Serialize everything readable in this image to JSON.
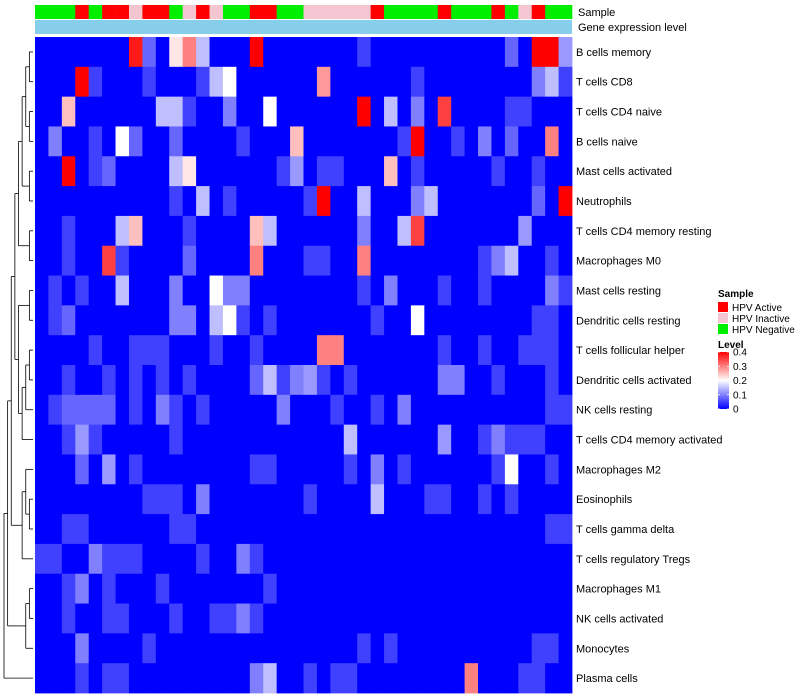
{
  "chart_data": {
    "type": "heatmap",
    "annotation_rows": [
      "Sample",
      "Gene expression level"
    ],
    "rows": [
      "B cells memory",
      "T cells CD8",
      "T cells CD4 naive",
      "B cells naive",
      "Mast cells activated",
      "Neutrophils",
      "T cells CD4 memory resting",
      "Macrophages M0",
      "Mast cells resting",
      "Dendritic cells resting",
      "T cells follicular helper",
      "Dendritic cells activated",
      "NK cells resting",
      "T cells CD4 memory activated",
      "Macrophages M2",
      "Eosinophils",
      "T cells gamma delta",
      "T cells regulatory  Tregs",
      "Macrophages M1",
      "NK cells activated",
      "Monocytes",
      "Plasma cells"
    ],
    "sample_groups": [
      "N",
      "N",
      "N",
      "A",
      "N",
      "A",
      "A",
      "I",
      "A",
      "A",
      "N",
      "I",
      "A",
      "I",
      "N",
      "N",
      "A",
      "A",
      "N",
      "N",
      "I",
      "I",
      "I",
      "I",
      "I",
      "A",
      "N",
      "N",
      "N",
      "N",
      "A",
      "N",
      "N",
      "N",
      "A",
      "N",
      "I",
      "A",
      "N",
      "N"
    ],
    "values": [
      [
        0,
        0,
        0,
        0,
        0,
        0,
        0,
        0.38,
        0.08,
        0,
        0.22,
        0.3,
        0.15,
        0,
        0,
        0,
        0.4,
        0,
        0,
        0,
        0,
        0,
        0,
        0,
        0.05,
        0,
        0,
        0,
        0,
        0,
        0,
        0,
        0,
        0,
        0,
        0.08,
        0,
        0.4,
        0.4,
        0.12
      ],
      [
        0,
        0,
        0,
        0.4,
        0.05,
        0,
        0,
        0,
        0.05,
        0,
        0,
        0,
        0.05,
        0.15,
        0.2,
        0,
        0,
        0,
        0,
        0,
        0,
        0.28,
        0,
        0,
        0,
        0,
        0,
        0,
        0.05,
        0,
        0,
        0,
        0,
        0,
        0,
        0,
        0,
        0.1,
        0.15,
        0.05
      ],
      [
        0,
        0,
        0.25,
        0,
        0,
        0,
        0,
        0,
        0,
        0.15,
        0.15,
        0.05,
        0,
        0,
        0.1,
        0,
        0,
        0.2,
        0,
        0,
        0,
        0,
        0,
        0,
        0.4,
        0,
        0.15,
        0,
        0.1,
        0,
        0.35,
        0,
        0,
        0,
        0,
        0.05,
        0.05,
        0,
        0,
        0
      ],
      [
        0,
        0.1,
        0,
        0,
        0.05,
        0,
        0.2,
        0.08,
        0,
        0,
        0.08,
        0,
        0,
        0,
        0,
        0.05,
        0,
        0,
        0,
        0.25,
        0,
        0,
        0,
        0,
        0,
        0,
        0,
        0.05,
        0.4,
        0,
        0,
        0.05,
        0,
        0.1,
        0,
        0.08,
        0,
        0,
        0.3,
        0
      ],
      [
        0,
        0,
        0.4,
        0,
        0.05,
        0.08,
        0,
        0,
        0,
        0,
        0.15,
        0.22,
        0,
        0,
        0,
        0,
        0,
        0,
        0.05,
        0.12,
        0,
        0.05,
        0.05,
        0,
        0,
        0,
        0.25,
        0,
        0.05,
        0,
        0,
        0,
        0,
        0,
        0.05,
        0,
        0,
        0.05,
        0,
        0
      ],
      [
        0,
        0,
        0,
        0,
        0,
        0,
        0,
        0,
        0,
        0,
        0.05,
        0,
        0.15,
        0,
        0.05,
        0,
        0,
        0,
        0,
        0,
        0.05,
        0.4,
        0,
        0,
        0.15,
        0,
        0,
        0,
        0.1,
        0.15,
        0,
        0,
        0,
        0,
        0,
        0,
        0,
        0.08,
        0,
        0.4
      ],
      [
        0,
        0,
        0.05,
        0,
        0,
        0,
        0.15,
        0.25,
        0,
        0,
        0,
        0.05,
        0,
        0,
        0,
        0,
        0.25,
        0.15,
        0,
        0,
        0,
        0,
        0,
        0,
        0.1,
        0,
        0,
        0.15,
        0.35,
        0,
        0,
        0,
        0,
        0,
        0,
        0,
        0.12,
        0,
        0,
        0
      ],
      [
        0,
        0,
        0.05,
        0,
        0,
        0.35,
        0.05,
        0,
        0,
        0,
        0,
        0.08,
        0,
        0,
        0,
        0,
        0.3,
        0,
        0,
        0,
        0.05,
        0.05,
        0,
        0,
        0.3,
        0,
        0,
        0,
        0,
        0,
        0,
        0,
        0,
        0.05,
        0.1,
        0.15,
        0,
        0,
        0.05,
        0
      ],
      [
        0,
        0.05,
        0,
        0.05,
        0,
        0,
        0.15,
        0,
        0,
        0,
        0.1,
        0,
        0,
        0.2,
        0.1,
        0.1,
        0,
        0,
        0,
        0,
        0,
        0,
        0,
        0,
        0.05,
        0,
        0.1,
        0,
        0,
        0,
        0.05,
        0,
        0,
        0.05,
        0,
        0,
        0,
        0,
        0.1,
        0.05
      ],
      [
        0,
        0.05,
        0.08,
        0,
        0,
        0,
        0,
        0,
        0,
        0,
        0.1,
        0.1,
        0,
        0.15,
        0.2,
        0.05,
        0,
        0.05,
        0,
        0,
        0,
        0,
        0,
        0,
        0,
        0.05,
        0,
        0,
        0.2,
        0,
        0,
        0,
        0,
        0,
        0,
        0,
        0,
        0.05,
        0.05,
        0
      ],
      [
        0,
        0,
        0,
        0,
        0.05,
        0,
        0,
        0.05,
        0.05,
        0.05,
        0,
        0,
        0,
        0.05,
        0,
        0,
        0.05,
        0,
        0,
        0,
        0,
        0.3,
        0.3,
        0,
        0,
        0,
        0,
        0,
        0,
        0,
        0.05,
        0,
        0,
        0.05,
        0,
        0,
        0.05,
        0.05,
        0.05,
        0
      ],
      [
        0,
        0,
        0.05,
        0,
        0,
        0.05,
        0,
        0.05,
        0,
        0.05,
        0,
        0.05,
        0,
        0,
        0,
        0,
        0.08,
        0.15,
        0.05,
        0.1,
        0.12,
        0.05,
        0,
        0.05,
        0,
        0,
        0,
        0,
        0,
        0,
        0.1,
        0.1,
        0,
        0,
        0.05,
        0,
        0,
        0,
        0.05,
        0
      ],
      [
        0,
        0.05,
        0.08,
        0.08,
        0.08,
        0.08,
        0,
        0.05,
        0,
        0.1,
        0.05,
        0,
        0.05,
        0,
        0,
        0,
        0,
        0,
        0.1,
        0,
        0,
        0,
        0.05,
        0,
        0,
        0.05,
        0,
        0.1,
        0,
        0,
        0,
        0,
        0,
        0,
        0,
        0,
        0,
        0,
        0.05,
        0.05
      ],
      [
        0,
        0,
        0.05,
        0.12,
        0.05,
        0,
        0,
        0,
        0,
        0,
        0.05,
        0,
        0,
        0,
        0,
        0,
        0,
        0,
        0,
        0,
        0,
        0,
        0,
        0.15,
        0,
        0,
        0,
        0,
        0,
        0,
        0.12,
        0,
        0,
        0.05,
        0.1,
        0.05,
        0.05,
        0.05,
        0,
        0
      ],
      [
        0,
        0,
        0,
        0.08,
        0,
        0.12,
        0,
        0.05,
        0,
        0,
        0,
        0,
        0,
        0,
        0,
        0,
        0.05,
        0.05,
        0,
        0,
        0,
        0,
        0,
        0.05,
        0,
        0.1,
        0,
        0.05,
        0,
        0,
        0,
        0,
        0,
        0,
        0.05,
        0.2,
        0,
        0,
        0.05,
        0
      ],
      [
        0,
        0,
        0,
        0,
        0,
        0,
        0,
        0,
        0.05,
        0.05,
        0.05,
        0,
        0.1,
        0,
        0,
        0,
        0,
        0,
        0,
        0,
        0.05,
        0,
        0,
        0,
        0,
        0.15,
        0,
        0,
        0,
        0.05,
        0.05,
        0,
        0,
        0.05,
        0,
        0.05,
        0,
        0,
        0,
        0
      ],
      [
        0,
        0,
        0.05,
        0.05,
        0,
        0,
        0,
        0,
        0,
        0,
        0.05,
        0.05,
        0,
        0,
        0,
        0,
        0,
        0,
        0,
        0,
        0,
        0,
        0,
        0,
        0,
        0,
        0,
        0,
        0,
        0,
        0,
        0,
        0,
        0,
        0,
        0,
        0,
        0,
        0.05,
        0.05
      ],
      [
        0.05,
        0.05,
        0,
        0,
        0.1,
        0.05,
        0.05,
        0.05,
        0,
        0,
        0,
        0,
        0.05,
        0,
        0,
        0.1,
        0.05,
        0,
        0,
        0,
        0,
        0,
        0,
        0,
        0,
        0,
        0,
        0,
        0,
        0,
        0,
        0,
        0,
        0,
        0,
        0,
        0,
        0,
        0,
        0
      ],
      [
        0,
        0,
        0.05,
        0.1,
        0,
        0.05,
        0,
        0,
        0,
        0.05,
        0,
        0,
        0,
        0,
        0,
        0,
        0,
        0.05,
        0,
        0,
        0,
        0,
        0,
        0,
        0,
        0,
        0,
        0,
        0,
        0,
        0,
        0,
        0,
        0,
        0,
        0,
        0,
        0,
        0,
        0
      ],
      [
        0,
        0,
        0.05,
        0,
        0,
        0.05,
        0.05,
        0,
        0,
        0,
        0.05,
        0,
        0,
        0.05,
        0.05,
        0.1,
        0.05,
        0,
        0,
        0,
        0,
        0,
        0,
        0,
        0,
        0,
        0,
        0,
        0,
        0,
        0,
        0,
        0,
        0,
        0,
        0,
        0,
        0,
        0,
        0
      ],
      [
        0,
        0,
        0,
        0.1,
        0,
        0,
        0,
        0,
        0.05,
        0,
        0,
        0,
        0,
        0,
        0,
        0,
        0,
        0,
        0,
        0,
        0,
        0,
        0,
        0,
        0.05,
        0,
        0.05,
        0,
        0,
        0,
        0,
        0,
        0,
        0,
        0,
        0,
        0,
        0.05,
        0.05,
        0
      ],
      [
        0,
        0,
        0,
        0.05,
        0,
        0.05,
        0.05,
        0,
        0,
        0,
        0,
        0,
        0,
        0,
        0,
        0,
        0.1,
        0.15,
        0,
        0,
        0.05,
        0,
        0.05,
        0.05,
        0,
        0,
        0,
        0,
        0,
        0,
        0,
        0,
        0.3,
        0,
        0,
        0,
        0.05,
        0.05,
        0,
        0
      ]
    ],
    "legend": {
      "sample": {
        "title": "Sample",
        "entries": [
          {
            "label": "HPV Active",
            "color": "#ff0000"
          },
          {
            "label": "HPV Inactive",
            "color": "#f4c6d2"
          },
          {
            "label": "HPV Negative",
            "color": "#00ee00"
          }
        ]
      },
      "level": {
        "title": "Level",
        "ticks": [
          0,
          0.1,
          0.2,
          0.3,
          0.4
        ],
        "tick_labels": [
          "0",
          "0.1",
          "0.2",
          "0.3",
          "0.4"
        ],
        "range": [
          0,
          0.4
        ],
        "colors": {
          "low": "#0000ff",
          "mid": "#ffffff",
          "high": "#ff0000",
          "midpoint": 0.2
        }
      }
    },
    "expression_bar_color": "#87ceeb",
    "dendrogram": "row"
  }
}
